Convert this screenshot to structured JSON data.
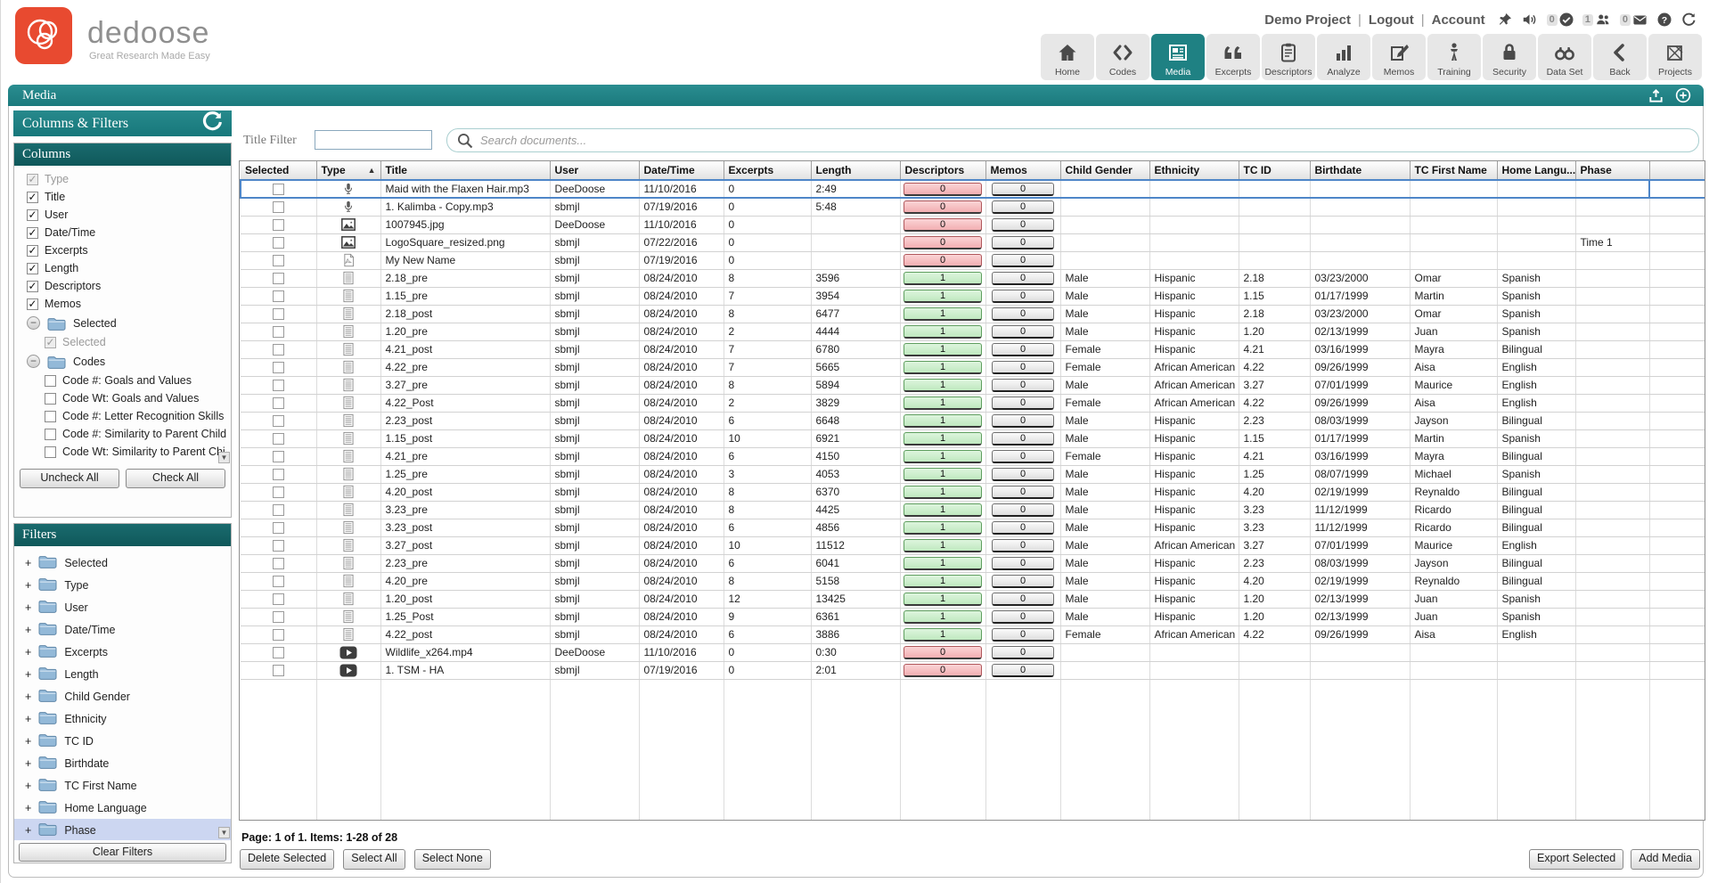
{
  "brand": {
    "name": "dedoose",
    "tagline": "Great Research Made Easy",
    "logo_color": "#e84a30"
  },
  "header": {
    "project_label": "Demo Project",
    "logout_label": "Logout",
    "account_label": "Account",
    "status_icons": [
      {
        "name": "pin-icon"
      },
      {
        "name": "sound-icon"
      },
      {
        "name": "alerts-badge",
        "count": "0"
      },
      {
        "name": "users-badge",
        "count": "1"
      },
      {
        "name": "messages-badge",
        "count": "0"
      },
      {
        "name": "help-icon"
      },
      {
        "name": "refresh-icon"
      }
    ],
    "nav": [
      {
        "label": "Home",
        "icon": "home-icon",
        "active": false
      },
      {
        "label": "Codes",
        "icon": "codes-icon",
        "active": false
      },
      {
        "label": "Media",
        "icon": "media-icon",
        "active": true
      },
      {
        "label": "Excerpts",
        "icon": "excerpts-icon",
        "active": false
      },
      {
        "label": "Descriptors",
        "icon": "descriptors-icon",
        "active": false
      },
      {
        "label": "Analyze",
        "icon": "analyze-icon",
        "active": false
      },
      {
        "label": "Memos",
        "icon": "memos-icon",
        "active": false
      },
      {
        "label": "Training",
        "icon": "training-icon",
        "active": false
      },
      {
        "label": "Security",
        "icon": "security-icon",
        "active": false
      },
      {
        "label": "Data Set",
        "icon": "dataset-icon",
        "active": false
      },
      {
        "label": "Back",
        "icon": "back-icon",
        "active": false
      },
      {
        "label": "Projects",
        "icon": "projects-icon",
        "active": false
      }
    ]
  },
  "media_bar": {
    "title": "Media",
    "icons": [
      "upload-icon",
      "add-circle-icon"
    ]
  },
  "accent_colors": {
    "teal": "#1f8183",
    "dark_teal": "#135f61",
    "selection_blue": "#4e86c8",
    "pink_badge": "#f2aeb1",
    "green_badge": "#bfe9bf"
  },
  "sidebar": {
    "header_title": "Columns & Filters",
    "columns_panel": {
      "title": "Columns",
      "items": [
        {
          "kind": "check",
          "label": "Type",
          "checked": true,
          "disabled": true
        },
        {
          "kind": "check",
          "label": "Title",
          "checked": true
        },
        {
          "kind": "check",
          "label": "User",
          "checked": true
        },
        {
          "kind": "check",
          "label": "Date/Time",
          "checked": true
        },
        {
          "kind": "check",
          "label": "Excerpts",
          "checked": true
        },
        {
          "kind": "check",
          "label": "Length",
          "checked": true
        },
        {
          "kind": "check",
          "label": "Descriptors",
          "checked": true
        },
        {
          "kind": "check",
          "label": "Memos",
          "checked": true
        },
        {
          "kind": "folder",
          "label": "Selected",
          "expander": "minus"
        },
        {
          "kind": "check",
          "label": "Selected",
          "checked": true,
          "disabled": true,
          "indent": 1
        },
        {
          "kind": "folder",
          "label": "Codes",
          "expander": "minus"
        },
        {
          "kind": "check",
          "label": "Code #: Goals and Values",
          "checked": false,
          "indent": 1
        },
        {
          "kind": "check",
          "label": "Code Wt: Goals and Values",
          "checked": false,
          "indent": 1
        },
        {
          "kind": "check",
          "label": "Code #: Letter Recognition Skills",
          "checked": false,
          "indent": 1
        },
        {
          "kind": "check",
          "label": "Code #: Similarity to Parent Child",
          "checked": false,
          "indent": 1
        },
        {
          "kind": "check",
          "label": "Code Wt: Similarity to Parent Chi",
          "checked": false,
          "indent": 1
        }
      ],
      "uncheck_all_label": "Uncheck All",
      "check_all_label": "Check All"
    },
    "filters_panel": {
      "title": "Filters",
      "items": [
        "Selected",
        "Type",
        "User",
        "Date/Time",
        "Excerpts",
        "Length",
        "Child Gender",
        "Ethnicity",
        "TC ID",
        "Birthdate",
        "TC First Name",
        "Home Language",
        "Phase"
      ],
      "selected_item": "Phase",
      "clear_label": "Clear Filters"
    }
  },
  "toolbar": {
    "title_filter_label": "Title Filter",
    "title_filter_value": "",
    "search_placeholder": "Search documents..."
  },
  "table": {
    "columns": [
      "Selected",
      "Type",
      "Title",
      "User",
      "Date/Time",
      "Excerpts",
      "Length",
      "Descriptors",
      "Memos",
      "Child Gender",
      "Ethnicity",
      "TC ID",
      "Birthdate",
      "TC First Name",
      "Home Langu...",
      "Phase"
    ],
    "sort_column": "Type",
    "sort_direction": "asc",
    "rows": [
      {
        "icon": "audio-icon",
        "title": "Maid with the Flaxen Hair.mp3",
        "user": "DeeDoose",
        "date": "11/10/2016",
        "excerpts": "0",
        "length": "2:49",
        "descriptors": "0",
        "desc_color": "pink",
        "memos": "0",
        "child_gender": "",
        "ethnicity": "",
        "tc_id": "",
        "birthdate": "",
        "tc_first_name": "",
        "home_language": "",
        "phase": "",
        "selected_row": true
      },
      {
        "icon": "audio-icon",
        "title": "1. Kalimba - Copy.mp3",
        "user": "sbmjl",
        "date": "07/19/2016",
        "excerpts": "0",
        "length": "5:48",
        "descriptors": "0",
        "desc_color": "pink",
        "memos": "0",
        "child_gender": "",
        "ethnicity": "",
        "tc_id": "",
        "birthdate": "",
        "tc_first_name": "",
        "home_language": "",
        "phase": ""
      },
      {
        "icon": "image-icon",
        "title": "1007945.jpg",
        "user": "DeeDoose",
        "date": "11/10/2016",
        "excerpts": "0",
        "length": "",
        "descriptors": "0",
        "desc_color": "pink",
        "memos": "0",
        "child_gender": "",
        "ethnicity": "",
        "tc_id": "",
        "birthdate": "",
        "tc_first_name": "",
        "home_language": "",
        "phase": ""
      },
      {
        "icon": "image-icon",
        "title": "LogoSquare_resized.png",
        "user": "sbmjl",
        "date": "07/22/2016",
        "excerpts": "0",
        "length": "",
        "descriptors": "0",
        "desc_color": "pink",
        "memos": "0",
        "child_gender": "",
        "ethnicity": "",
        "tc_id": "",
        "birthdate": "",
        "tc_first_name": "",
        "home_language": "",
        "phase": "Time 1"
      },
      {
        "icon": "pdf-icon",
        "title": "My New Name",
        "user": "sbmjl",
        "date": "07/19/2016",
        "excerpts": "0",
        "length": "",
        "descriptors": "0",
        "desc_color": "pink",
        "memos": "0",
        "child_gender": "",
        "ethnicity": "",
        "tc_id": "",
        "birthdate": "",
        "tc_first_name": "",
        "home_language": "",
        "phase": ""
      },
      {
        "icon": "document-icon",
        "title": "2.18_pre",
        "user": "sbmjl",
        "date": "08/24/2010",
        "excerpts": "8",
        "length": "3596",
        "descriptors": "1",
        "desc_color": "green",
        "memos": "0",
        "child_gender": "Male",
        "ethnicity": "Hispanic",
        "tc_id": "2.18",
        "birthdate": "03/23/2000",
        "tc_first_name": "Omar",
        "home_language": "Spanish",
        "phase": ""
      },
      {
        "icon": "document-icon",
        "title": "1.15_pre",
        "user": "sbmjl",
        "date": "08/24/2010",
        "excerpts": "7",
        "length": "3954",
        "descriptors": "1",
        "desc_color": "green",
        "memos": "0",
        "child_gender": "Male",
        "ethnicity": "Hispanic",
        "tc_id": "1.15",
        "birthdate": "01/17/1999",
        "tc_first_name": "Martin",
        "home_language": "Spanish",
        "phase": ""
      },
      {
        "icon": "document-icon",
        "title": "2.18_post",
        "user": "sbmjl",
        "date": "08/24/2010",
        "excerpts": "8",
        "length": "6477",
        "descriptors": "1",
        "desc_color": "green",
        "memos": "0",
        "child_gender": "Male",
        "ethnicity": "Hispanic",
        "tc_id": "2.18",
        "birthdate": "03/23/2000",
        "tc_first_name": "Omar",
        "home_language": "Spanish",
        "phase": ""
      },
      {
        "icon": "document-icon",
        "title": "1.20_pre",
        "user": "sbmjl",
        "date": "08/24/2010",
        "excerpts": "2",
        "length": "4444",
        "descriptors": "1",
        "desc_color": "green",
        "memos": "0",
        "child_gender": "Male",
        "ethnicity": "Hispanic",
        "tc_id": "1.20",
        "birthdate": "02/13/1999",
        "tc_first_name": "Juan",
        "home_language": "Spanish",
        "phase": ""
      },
      {
        "icon": "document-icon",
        "title": "4.21_post",
        "user": "sbmjl",
        "date": "08/24/2010",
        "excerpts": "7",
        "length": "6780",
        "descriptors": "1",
        "desc_color": "green",
        "memos": "0",
        "child_gender": "Female",
        "ethnicity": "Hispanic",
        "tc_id": "4.21",
        "birthdate": "03/16/1999",
        "tc_first_name": "Mayra",
        "home_language": "Bilingual",
        "phase": ""
      },
      {
        "icon": "document-icon",
        "title": "4.22_pre",
        "user": "sbmjl",
        "date": "08/24/2010",
        "excerpts": "7",
        "length": "5665",
        "descriptors": "1",
        "desc_color": "green",
        "memos": "0",
        "child_gender": "Female",
        "ethnicity": "African American",
        "tc_id": "4.22",
        "birthdate": "09/26/1999",
        "tc_first_name": "Aisa",
        "home_language": "English",
        "phase": ""
      },
      {
        "icon": "document-icon",
        "title": "3.27_pre",
        "user": "sbmjl",
        "date": "08/24/2010",
        "excerpts": "8",
        "length": "5894",
        "descriptors": "1",
        "desc_color": "green",
        "memos": "0",
        "child_gender": "Male",
        "ethnicity": "African American",
        "tc_id": "3.27",
        "birthdate": "07/01/1999",
        "tc_first_name": "Maurice",
        "home_language": "English",
        "phase": ""
      },
      {
        "icon": "document-icon",
        "title": "4.22_Post",
        "user": "sbmjl",
        "date": "08/24/2010",
        "excerpts": "2",
        "length": "3829",
        "descriptors": "1",
        "desc_color": "green",
        "memos": "0",
        "child_gender": "Female",
        "ethnicity": "African American",
        "tc_id": "4.22",
        "birthdate": "09/26/1999",
        "tc_first_name": "Aisa",
        "home_language": "English",
        "phase": ""
      },
      {
        "icon": "document-icon",
        "title": "2.23_post",
        "user": "sbmjl",
        "date": "08/24/2010",
        "excerpts": "6",
        "length": "6648",
        "descriptors": "1",
        "desc_color": "green",
        "memos": "0",
        "child_gender": "Male",
        "ethnicity": "Hispanic",
        "tc_id": "2.23",
        "birthdate": "08/03/1999",
        "tc_first_name": "Jayson",
        "home_language": "Bilingual",
        "phase": ""
      },
      {
        "icon": "document-icon",
        "title": "1.15_post",
        "user": "sbmjl",
        "date": "08/24/2010",
        "excerpts": "10",
        "length": "6921",
        "descriptors": "1",
        "desc_color": "green",
        "memos": "0",
        "child_gender": "Male",
        "ethnicity": "Hispanic",
        "tc_id": "1.15",
        "birthdate": "01/17/1999",
        "tc_first_name": "Martin",
        "home_language": "Spanish",
        "phase": ""
      },
      {
        "icon": "document-icon",
        "title": "4.21_pre",
        "user": "sbmjl",
        "date": "08/24/2010",
        "excerpts": "6",
        "length": "4150",
        "descriptors": "1",
        "desc_color": "green",
        "memos": "0",
        "child_gender": "Female",
        "ethnicity": "Hispanic",
        "tc_id": "4.21",
        "birthdate": "03/16/1999",
        "tc_first_name": "Mayra",
        "home_language": "Bilingual",
        "phase": ""
      },
      {
        "icon": "document-icon",
        "title": "1.25_pre",
        "user": "sbmjl",
        "date": "08/24/2010",
        "excerpts": "3",
        "length": "4053",
        "descriptors": "1",
        "desc_color": "green",
        "memos": "0",
        "child_gender": "Male",
        "ethnicity": "Hispanic",
        "tc_id": "1.25",
        "birthdate": "08/07/1999",
        "tc_first_name": "Michael",
        "home_language": "Spanish",
        "phase": ""
      },
      {
        "icon": "document-icon",
        "title": "4.20_post",
        "user": "sbmjl",
        "date": "08/24/2010",
        "excerpts": "8",
        "length": "6370",
        "descriptors": "1",
        "desc_color": "green",
        "memos": "0",
        "child_gender": "Male",
        "ethnicity": "Hispanic",
        "tc_id": "4.20",
        "birthdate": "02/19/1999",
        "tc_first_name": "Reynaldo",
        "home_language": "Bilingual",
        "phase": ""
      },
      {
        "icon": "document-icon",
        "title": "3.23_pre",
        "user": "sbmjl",
        "date": "08/24/2010",
        "excerpts": "8",
        "length": "4425",
        "descriptors": "1",
        "desc_color": "green",
        "memos": "0",
        "child_gender": "Male",
        "ethnicity": "Hispanic",
        "tc_id": "3.23",
        "birthdate": "11/12/1999",
        "tc_first_name": "Ricardo",
        "home_language": "Bilingual",
        "phase": ""
      },
      {
        "icon": "document-icon",
        "title": "3.23_post",
        "user": "sbmjl",
        "date": "08/24/2010",
        "excerpts": "6",
        "length": "4856",
        "descriptors": "1",
        "desc_color": "green",
        "memos": "0",
        "child_gender": "Male",
        "ethnicity": "Hispanic",
        "tc_id": "3.23",
        "birthdate": "11/12/1999",
        "tc_first_name": "Ricardo",
        "home_language": "Bilingual",
        "phase": ""
      },
      {
        "icon": "document-icon",
        "title": "3.27_post",
        "user": "sbmjl",
        "date": "08/24/2010",
        "excerpts": "10",
        "length": "11512",
        "descriptors": "1",
        "desc_color": "green",
        "memos": "0",
        "child_gender": "Male",
        "ethnicity": "African American",
        "tc_id": "3.27",
        "birthdate": "07/01/1999",
        "tc_first_name": "Maurice",
        "home_language": "English",
        "phase": ""
      },
      {
        "icon": "document-icon",
        "title": "2.23_pre",
        "user": "sbmjl",
        "date": "08/24/2010",
        "excerpts": "6",
        "length": "6041",
        "descriptors": "1",
        "desc_color": "green",
        "memos": "0",
        "child_gender": "Male",
        "ethnicity": "Hispanic",
        "tc_id": "2.23",
        "birthdate": "08/03/1999",
        "tc_first_name": "Jayson",
        "home_language": "Bilingual",
        "phase": ""
      },
      {
        "icon": "document-icon",
        "title": "4.20_pre",
        "user": "sbmjl",
        "date": "08/24/2010",
        "excerpts": "8",
        "length": "5158",
        "descriptors": "1",
        "desc_color": "green",
        "memos": "0",
        "child_gender": "Male",
        "ethnicity": "Hispanic",
        "tc_id": "4.20",
        "birthdate": "02/19/1999",
        "tc_first_name": "Reynaldo",
        "home_language": "Bilingual",
        "phase": ""
      },
      {
        "icon": "document-icon",
        "title": "1.20_post",
        "user": "sbmjl",
        "date": "08/24/2010",
        "excerpts": "12",
        "length": "13425",
        "descriptors": "1",
        "desc_color": "green",
        "memos": "0",
        "child_gender": "Male",
        "ethnicity": "Hispanic",
        "tc_id": "1.20",
        "birthdate": "02/13/1999",
        "tc_first_name": "Juan",
        "home_language": "Spanish",
        "phase": ""
      },
      {
        "icon": "document-icon",
        "title": "1.25_Post",
        "user": "sbmjl",
        "date": "08/24/2010",
        "excerpts": "9",
        "length": "6361",
        "descriptors": "1",
        "desc_color": "green",
        "memos": "0",
        "child_gender": "Male",
        "ethnicity": "Hispanic",
        "tc_id": "1.20",
        "birthdate": "02/13/1999",
        "tc_first_name": "Juan",
        "home_language": "Spanish",
        "phase": ""
      },
      {
        "icon": "document-icon",
        "title": "4.22_post",
        "user": "sbmjl",
        "date": "08/24/2010",
        "excerpts": "6",
        "length": "3886",
        "descriptors": "1",
        "desc_color": "green",
        "memos": "0",
        "child_gender": "Female",
        "ethnicity": "African American",
        "tc_id": "4.22",
        "birthdate": "09/26/1999",
        "tc_first_name": "Aisa",
        "home_language": "English",
        "phase": ""
      },
      {
        "icon": "video-icon",
        "title": "Wildlife_x264.mp4",
        "user": "DeeDoose",
        "date": "11/10/2016",
        "excerpts": "0",
        "length": "0:30",
        "descriptors": "0",
        "desc_color": "pink",
        "memos": "0",
        "child_gender": "",
        "ethnicity": "",
        "tc_id": "",
        "birthdate": "",
        "tc_first_name": "",
        "home_language": "",
        "phase": ""
      },
      {
        "icon": "video-icon",
        "title": "1. TSM - HA",
        "user": "sbmjl",
        "date": "07/19/2016",
        "excerpts": "0",
        "length": "2:01",
        "descriptors": "0",
        "desc_color": "pink",
        "memos": "0",
        "child_gender": "",
        "ethnicity": "",
        "tc_id": "",
        "birthdate": "",
        "tc_first_name": "",
        "home_language": "",
        "phase": ""
      }
    ]
  },
  "footer": {
    "pagination": "Page: 1 of 1. Items: 1-28 of 28",
    "buttons": [
      "Delete Selected",
      "Select All",
      "Select None"
    ],
    "right_buttons": [
      "Export Selected",
      "Add Media"
    ]
  }
}
